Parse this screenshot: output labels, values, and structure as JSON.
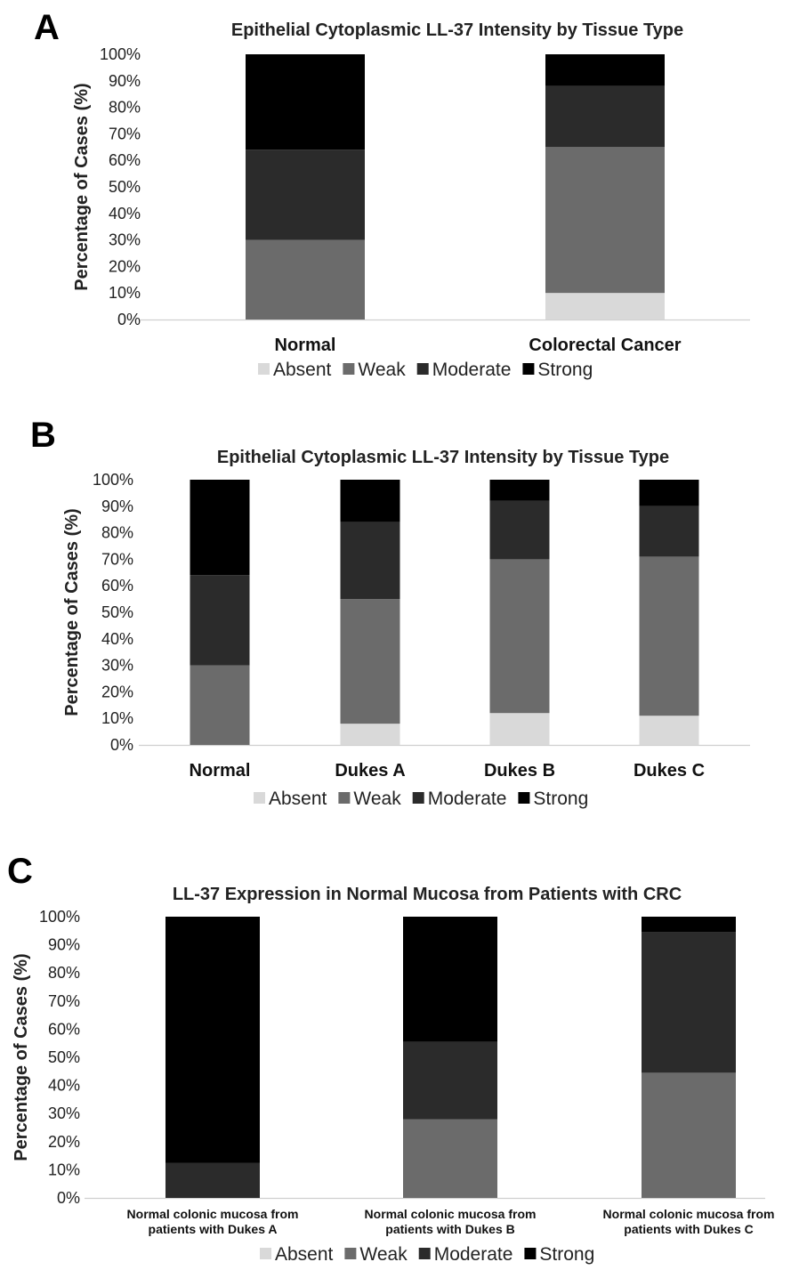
{
  "colors": {
    "Absent": "#d9d9d9",
    "Weak": "#6b6b6b",
    "Moderate": "#2b2b2b",
    "Strong": "#000000"
  },
  "chart_data": [
    {
      "panel": "A",
      "type": "bar",
      "stacked": true,
      "title": "Epithelial Cytoplasmic LL-37 Intensity by Tissue Type",
      "ylabel": "Percentage of Cases (%)",
      "xlabel": "",
      "ylim": [
        0,
        100
      ],
      "yticks": [
        "0%",
        "10%",
        "20%",
        "30%",
        "40%",
        "50%",
        "60%",
        "70%",
        "80%",
        "90%",
        "100%"
      ],
      "categories": [
        "Normal",
        "Colorectal Cancer"
      ],
      "series": [
        {
          "name": "Absent",
          "values": [
            0,
            10
          ]
        },
        {
          "name": "Weak",
          "values": [
            30,
            55
          ]
        },
        {
          "name": "Moderate",
          "values": [
            34,
            23
          ]
        },
        {
          "name": "Strong",
          "values": [
            36,
            12
          ]
        }
      ],
      "legend": [
        "Absent",
        "Weak",
        "Moderate",
        "Strong"
      ],
      "legend_position": "bottom",
      "grid": false
    },
    {
      "panel": "B",
      "type": "bar",
      "stacked": true,
      "title": "Epithelial Cytoplasmic LL-37 Intensity by Tissue Type",
      "ylabel": "Percentage of Cases (%)",
      "xlabel": "",
      "ylim": [
        0,
        100
      ],
      "yticks": [
        "0%",
        "10%",
        "20%",
        "30%",
        "40%",
        "50%",
        "60%",
        "70%",
        "80%",
        "90%",
        "100%"
      ],
      "categories": [
        "Normal",
        "Dukes A",
        "Dukes B",
        "Dukes C"
      ],
      "series": [
        {
          "name": "Absent",
          "values": [
            0,
            8,
            12,
            11
          ]
        },
        {
          "name": "Weak",
          "values": [
            30,
            47,
            58,
            60
          ]
        },
        {
          "name": "Moderate",
          "values": [
            34,
            29,
            22,
            19
          ]
        },
        {
          "name": "Strong",
          "values": [
            36,
            16,
            8,
            10
          ]
        }
      ],
      "legend": [
        "Absent",
        "Weak",
        "Moderate",
        "Strong"
      ],
      "legend_position": "bottom",
      "grid": false
    },
    {
      "panel": "C",
      "type": "bar",
      "stacked": true,
      "title": "LL-37 Expression in Normal Mucosa from Patients with CRC",
      "ylabel": "Percentage of Cases (%)",
      "xlabel": "",
      "ylim": [
        0,
        100
      ],
      "yticks": [
        "0%",
        "10%",
        "20%",
        "30%",
        "40%",
        "50%",
        "60%",
        "70%",
        "80%",
        "90%",
        "100%"
      ],
      "categories": [
        [
          "Normal colonic mucosa from",
          "patients with Dukes A"
        ],
        [
          "Normal colonic mucosa from",
          "patients with Dukes B"
        ],
        [
          "Normal colonic mucosa from",
          "patients with Dukes C"
        ]
      ],
      "series": [
        {
          "name": "Absent",
          "values": [
            0,
            0,
            0
          ]
        },
        {
          "name": "Weak",
          "values": [
            0,
            28,
            44.5
          ]
        },
        {
          "name": "Moderate",
          "values": [
            12.5,
            27.5,
            50
          ]
        },
        {
          "name": "Strong",
          "values": [
            87.5,
            44.5,
            5.5
          ]
        }
      ],
      "legend": [
        "Absent",
        "Weak",
        "Moderate",
        "Strong"
      ],
      "legend_position": "bottom",
      "grid": false
    }
  ]
}
